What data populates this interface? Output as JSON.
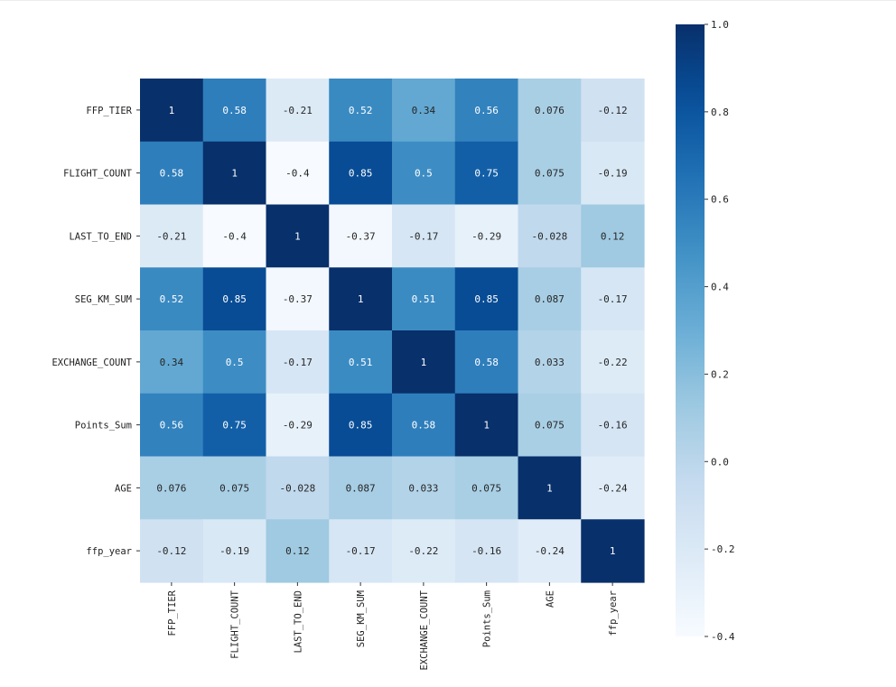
{
  "chart_data": {
    "type": "heatmap",
    "colormap": "Blues",
    "vmin": -0.4,
    "vmax": 1.0,
    "row_labels": [
      "FFP_TIER",
      "FLIGHT_COUNT",
      "LAST_TO_END",
      "SEG_KM_SUM",
      "EXCHANGE_COUNT",
      "Points_Sum",
      "AGE",
      "ffp_year"
    ],
    "col_labels": [
      "FFP_TIER",
      "FLIGHT_COUNT",
      "LAST_TO_END",
      "SEG_KM_SUM",
      "EXCHANGE_COUNT",
      "Points_Sum",
      "AGE",
      "ffp_year"
    ],
    "values": [
      [
        1,
        0.58,
        -0.21,
        0.52,
        0.34,
        0.56,
        0.076,
        -0.12
      ],
      [
        0.58,
        1,
        -0.4,
        0.85,
        0.5,
        0.75,
        0.075,
        -0.19
      ],
      [
        -0.21,
        -0.4,
        1,
        -0.37,
        -0.17,
        -0.29,
        -0.028,
        0.12
      ],
      [
        0.52,
        0.85,
        -0.37,
        1,
        0.51,
        0.85,
        0.087,
        -0.17
      ],
      [
        0.34,
        0.5,
        -0.17,
        0.51,
        1,
        0.58,
        0.033,
        -0.22
      ],
      [
        0.56,
        0.75,
        -0.29,
        0.85,
        0.58,
        1,
        0.075,
        -0.16
      ],
      [
        0.076,
        0.075,
        -0.028,
        0.087,
        0.033,
        0.075,
        1,
        -0.24
      ],
      [
        -0.12,
        -0.19,
        0.12,
        -0.17,
        -0.22,
        -0.16,
        -0.24,
        1
      ]
    ],
    "annotations": [
      [
        "1",
        "0.58",
        "-0.21",
        "0.52",
        "0.34",
        "0.56",
        "0.076",
        "-0.12"
      ],
      [
        "0.58",
        "1",
        "-0.4",
        "0.85",
        "0.5",
        "0.75",
        "0.075",
        "-0.19"
      ],
      [
        "-0.21",
        "-0.4",
        "1",
        "-0.37",
        "-0.17",
        "-0.29",
        "-0.028",
        "0.12"
      ],
      [
        "0.52",
        "0.85",
        "-0.37",
        "1",
        "0.51",
        "0.85",
        "0.087",
        "-0.17"
      ],
      [
        "0.34",
        "0.5",
        "-0.17",
        "0.51",
        "1",
        "0.58",
        "0.033",
        "-0.22"
      ],
      [
        "0.56",
        "0.75",
        "-0.29",
        "0.85",
        "0.58",
        "1",
        "0.075",
        "-0.16"
      ],
      [
        "0.076",
        "0.075",
        "-0.028",
        "0.087",
        "0.033",
        "0.075",
        "1",
        "-0.24"
      ],
      [
        "-0.12",
        "-0.19",
        "0.12",
        "-0.17",
        "-0.22",
        "-0.16",
        "-0.24",
        "1"
      ]
    ],
    "colorbar_ticks": [
      1.0,
      0.8,
      0.6,
      0.4,
      0.2,
      0.0,
      -0.2,
      -0.4
    ],
    "colorbar_tick_labels": [
      "1.0",
      "0.8",
      "0.6",
      "0.4",
      "0.2",
      "0.0",
      "-0.2",
      "-0.4"
    ],
    "title": "",
    "xlabel": "",
    "ylabel": ""
  }
}
